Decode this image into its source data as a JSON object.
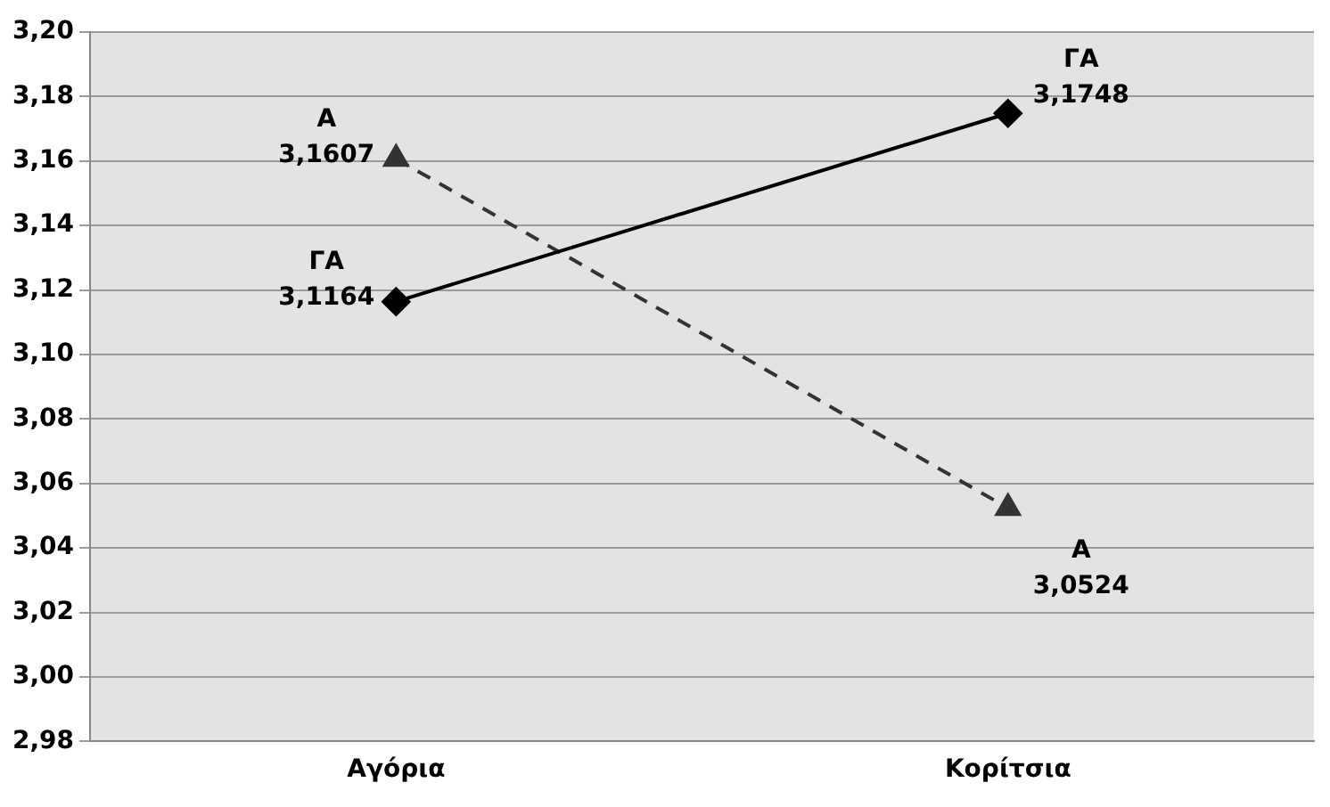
{
  "chart_data": {
    "type": "line",
    "categories": [
      "Αγόρια",
      "Κορίτσια"
    ],
    "series": [
      {
        "name": "ΓΑ",
        "color": "#000000",
        "values": [
          3.1164,
          3.1748
        ],
        "value_labels": [
          "3,1164",
          "3,1748"
        ],
        "marker": "diamond",
        "line_style": "solid"
      },
      {
        "name": "Α",
        "color": "#333333",
        "values": [
          3.1607,
          3.0524
        ],
        "value_labels": [
          "3,1607",
          "3,0524"
        ],
        "marker": "triangle",
        "line_style": "dashed"
      }
    ],
    "ylim": [
      2.98,
      3.2
    ],
    "yticks": [
      {
        "value": 2.98,
        "label": "2,98"
      },
      {
        "value": 3.0,
        "label": "3,00"
      },
      {
        "value": 3.02,
        "label": "3,02"
      },
      {
        "value": 3.04,
        "label": "3,04"
      },
      {
        "value": 3.06,
        "label": "3,06"
      },
      {
        "value": 3.08,
        "label": "3,08"
      },
      {
        "value": 3.1,
        "label": "3,10"
      },
      {
        "value": 3.12,
        "label": "3,12"
      },
      {
        "value": 3.14,
        "label": "3,14"
      },
      {
        "value": 3.16,
        "label": "3,16"
      },
      {
        "value": 3.18,
        "label": "3,18"
      },
      {
        "value": 3.2,
        "label": "3,20"
      }
    ],
    "grid": "y",
    "legend": false
  }
}
